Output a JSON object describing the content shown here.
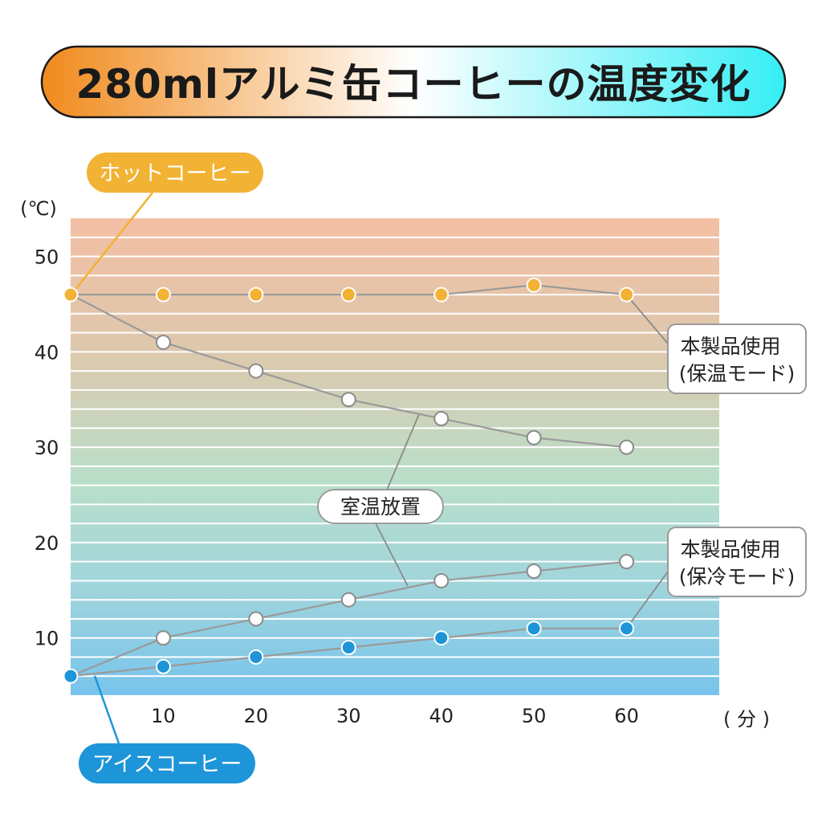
{
  "title": "280mlアルミ缶コーヒーの温度変化",
  "y_unit": "(℃)",
  "x_unit": "( 分 )",
  "colors": {
    "hot_marker": "#f2b233",
    "cold_marker": "#1d95d8",
    "line": "#9a9a9a",
    "title_orange": "#f08a1c",
    "title_cyan": "#35eef5",
    "band_top": "#f3bfa4",
    "band_mid": "#b9dfc9",
    "band_bottom": "#78c4ec"
  },
  "labels": {
    "hot_badge": "ホットコーヒー",
    "cold_badge": "アイスコーヒー",
    "keep_warm_line1": "本製品使用",
    "keep_warm_line2": "(保温モード)",
    "room_temp": "室温放置",
    "keep_cold_line1": "本製品使用",
    "keep_cold_line2": "(保冷モード)"
  },
  "chart_data": {
    "type": "line",
    "title": "280mlアルミ缶コーヒーの温度変化",
    "xlabel": "( 分 )",
    "ylabel": "(℃)",
    "x": [
      0,
      10,
      20,
      30,
      40,
      50,
      60
    ],
    "x_ticks": [
      10,
      20,
      30,
      40,
      50,
      60
    ],
    "y_ticks": [
      10,
      20,
      30,
      40,
      50
    ],
    "xlim": [
      0,
      70
    ],
    "ylim": [
      4,
      54
    ],
    "grid": true,
    "series": [
      {
        "name": "本製品使用(保温モード)",
        "marker": "hot",
        "values": [
          46,
          46,
          46,
          46,
          46,
          47,
          46
        ]
      },
      {
        "name": "室温放置(ホット)",
        "marker": "open",
        "values": [
          46,
          41,
          38,
          35,
          33,
          31,
          30
        ]
      },
      {
        "name": "室温放置(アイス)",
        "marker": "open",
        "values": [
          6,
          10,
          12,
          14,
          16,
          17,
          18
        ]
      },
      {
        "name": "本製品使用(保冷モード)",
        "marker": "cold",
        "values": [
          6,
          7,
          8,
          9,
          10,
          11,
          11
        ]
      }
    ]
  }
}
